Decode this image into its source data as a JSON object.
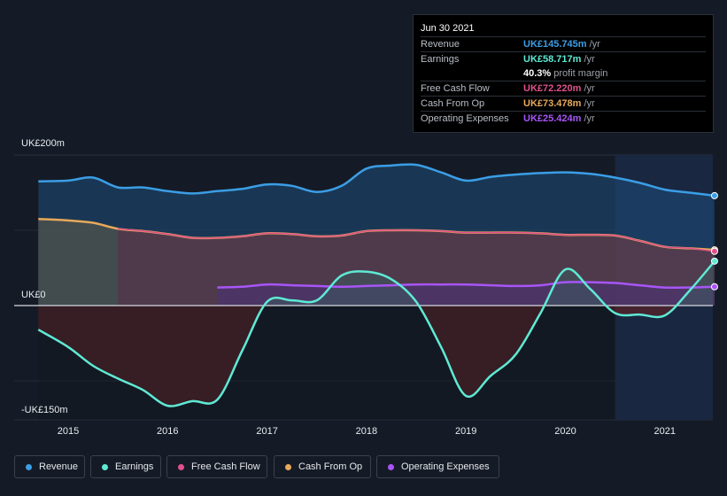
{
  "tooltip": {
    "date": "Jun 30 2021",
    "rows": [
      {
        "label": "Revenue",
        "value": "UK£145.745m",
        "unit": "/yr",
        "color": "#3b9ee6"
      },
      {
        "label": "Earnings",
        "value": "UK£58.717m",
        "unit": "/yr",
        "color": "#5eead4"
      },
      {
        "label": "",
        "margin_value": "40.3%",
        "margin_label": "profit margin"
      },
      {
        "label": "Free Cash Flow",
        "value": "UK£72.220m",
        "unit": "/yr",
        "color": "#e0518c"
      },
      {
        "label": "Cash From Op",
        "value": "UK£73.478m",
        "unit": "/yr",
        "color": "#e8a85a"
      },
      {
        "label": "Operating Expenses",
        "value": "UK£25.424m",
        "unit": "/yr",
        "color": "#a855f7"
      }
    ]
  },
  "axis": {
    "top_label": "UK£200m",
    "zero_label": "UK£0",
    "bottom_label": "-UK£150m"
  },
  "legend": [
    {
      "label": "Revenue",
      "color": "#3b9ee6"
    },
    {
      "label": "Earnings",
      "color": "#5eead4"
    },
    {
      "label": "Free Cash Flow",
      "color": "#e0518c"
    },
    {
      "label": "Cash From Op",
      "color": "#e8a85a"
    },
    {
      "label": "Operating Expenses",
      "color": "#a855f7"
    }
  ],
  "chart_data": {
    "type": "area",
    "x_ticks": [
      "2015",
      "2016",
      "2017",
      "2018",
      "2019",
      "2020",
      "2021"
    ],
    "ylim": [
      -150,
      200
    ],
    "highlight_from": 2020.5,
    "series": [
      {
        "name": "Revenue",
        "color": "#3b9ee6",
        "points": [
          [
            2014.7,
            165
          ],
          [
            2015.0,
            166
          ],
          [
            2015.25,
            170
          ],
          [
            2015.5,
            157
          ],
          [
            2015.75,
            157
          ],
          [
            2016.0,
            152
          ],
          [
            2016.25,
            149
          ],
          [
            2016.5,
            152
          ],
          [
            2016.75,
            155
          ],
          [
            2017.0,
            161
          ],
          [
            2017.25,
            159
          ],
          [
            2017.5,
            151
          ],
          [
            2017.75,
            159
          ],
          [
            2018.0,
            182
          ],
          [
            2018.25,
            186
          ],
          [
            2018.5,
            187
          ],
          [
            2018.75,
            177
          ],
          [
            2019.0,
            166
          ],
          [
            2019.25,
            171
          ],
          [
            2019.5,
            174
          ],
          [
            2019.75,
            176
          ],
          [
            2020.0,
            177
          ],
          [
            2020.25,
            175
          ],
          [
            2020.5,
            170
          ],
          [
            2020.75,
            163
          ],
          [
            2021.0,
            154
          ],
          [
            2021.25,
            150
          ],
          [
            2021.5,
            146
          ]
        ]
      },
      {
        "name": "Cash From Op",
        "color": "#e8a85a",
        "points": [
          [
            2014.7,
            115
          ],
          [
            2015.0,
            113
          ],
          [
            2015.25,
            110
          ],
          [
            2015.5,
            102
          ],
          [
            2015.75,
            99
          ],
          [
            2016.0,
            95
          ],
          [
            2016.25,
            90
          ],
          [
            2016.5,
            90
          ],
          [
            2016.75,
            92
          ],
          [
            2017.0,
            96
          ],
          [
            2017.25,
            95
          ],
          [
            2017.5,
            92
          ],
          [
            2017.75,
            93
          ],
          [
            2018.0,
            99
          ],
          [
            2018.25,
            100
          ],
          [
            2018.5,
            100
          ],
          [
            2018.75,
            99
          ],
          [
            2019.0,
            97
          ],
          [
            2019.25,
            97
          ],
          [
            2019.5,
            97
          ],
          [
            2019.75,
            96
          ],
          [
            2020.0,
            94
          ],
          [
            2020.25,
            94
          ],
          [
            2020.5,
            93
          ],
          [
            2020.75,
            86
          ],
          [
            2021.0,
            78
          ],
          [
            2021.25,
            76
          ],
          [
            2021.5,
            74
          ]
        ]
      },
      {
        "name": "Free Cash Flow",
        "color": "#e0518c",
        "points": [
          [
            2014.7,
            115
          ],
          [
            2015.0,
            113
          ],
          [
            2015.25,
            110
          ],
          [
            2015.5,
            102
          ],
          [
            2015.75,
            99
          ],
          [
            2016.0,
            95
          ],
          [
            2016.25,
            90
          ],
          [
            2016.5,
            90
          ],
          [
            2016.75,
            92
          ],
          [
            2017.0,
            96
          ],
          [
            2017.25,
            95
          ],
          [
            2017.5,
            92
          ],
          [
            2017.75,
            93
          ],
          [
            2018.0,
            99
          ],
          [
            2018.25,
            100
          ],
          [
            2018.5,
            100
          ],
          [
            2018.75,
            99
          ],
          [
            2019.0,
            97
          ],
          [
            2019.25,
            97
          ],
          [
            2019.5,
            97
          ],
          [
            2019.75,
            96
          ],
          [
            2020.0,
            94
          ],
          [
            2020.25,
            94
          ],
          [
            2020.5,
            93
          ],
          [
            2020.75,
            86
          ],
          [
            2021.0,
            78
          ],
          [
            2021.25,
            76
          ],
          [
            2021.5,
            72
          ]
        ]
      },
      {
        "name": "Operating Expenses",
        "color": "#a855f7",
        "points": [
          [
            2016.5,
            24
          ],
          [
            2016.75,
            25
          ],
          [
            2017.0,
            28
          ],
          [
            2017.25,
            27
          ],
          [
            2017.5,
            26
          ],
          [
            2017.75,
            25
          ],
          [
            2018.0,
            26
          ],
          [
            2018.25,
            27
          ],
          [
            2018.5,
            28
          ],
          [
            2018.75,
            28
          ],
          [
            2019.0,
            28
          ],
          [
            2019.25,
            27
          ],
          [
            2019.5,
            26
          ],
          [
            2019.75,
            27
          ],
          [
            2020.0,
            31
          ],
          [
            2020.25,
            31
          ],
          [
            2020.5,
            30
          ],
          [
            2020.75,
            27
          ],
          [
            2021.0,
            24
          ],
          [
            2021.25,
            24
          ],
          [
            2021.5,
            25
          ]
        ]
      },
      {
        "name": "Earnings",
        "color": "#5eead4",
        "points": [
          [
            2014.7,
            -32
          ],
          [
            2015.0,
            -55
          ],
          [
            2015.25,
            -80
          ],
          [
            2015.5,
            -97
          ],
          [
            2015.75,
            -112
          ],
          [
            2016.0,
            -133
          ],
          [
            2016.25,
            -127
          ],
          [
            2016.5,
            -125
          ],
          [
            2016.75,
            -60
          ],
          [
            2017.0,
            5
          ],
          [
            2017.25,
            7
          ],
          [
            2017.5,
            7
          ],
          [
            2017.75,
            40
          ],
          [
            2018.0,
            45
          ],
          [
            2018.25,
            35
          ],
          [
            2018.5,
            5
          ],
          [
            2018.75,
            -55
          ],
          [
            2019.0,
            -120
          ],
          [
            2019.25,
            -93
          ],
          [
            2019.5,
            -65
          ],
          [
            2019.75,
            -10
          ],
          [
            2020.0,
            48
          ],
          [
            2020.25,
            22
          ],
          [
            2020.5,
            -10
          ],
          [
            2020.75,
            -12
          ],
          [
            2021.0,
            -13
          ],
          [
            2021.25,
            20
          ],
          [
            2021.5,
            59
          ]
        ]
      }
    ]
  }
}
